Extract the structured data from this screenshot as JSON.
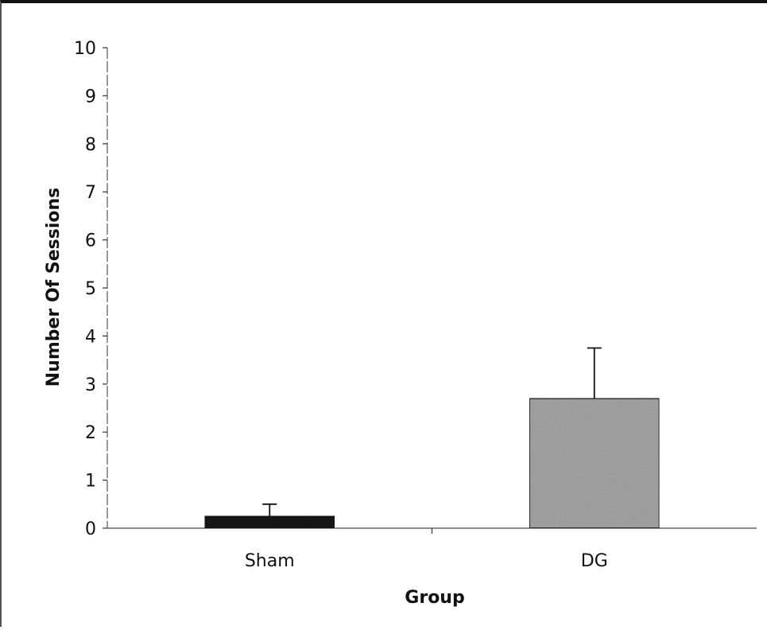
{
  "chart_data": {
    "type": "bar",
    "xlabel": "Group",
    "ylabel": "Number Of Sessions",
    "ylim": [
      0,
      10
    ],
    "yticks": [
      "0",
      "1",
      "2",
      "3",
      "4",
      "5",
      "6",
      "7",
      "8",
      "9",
      "10"
    ],
    "grid": false,
    "categories": [
      "Sham",
      "DG"
    ],
    "values": [
      0.25,
      2.7
    ],
    "error_bars": [
      0.25,
      1.05
    ],
    "colors": [
      "#1a1a1a",
      "#a8a8a8"
    ]
  }
}
